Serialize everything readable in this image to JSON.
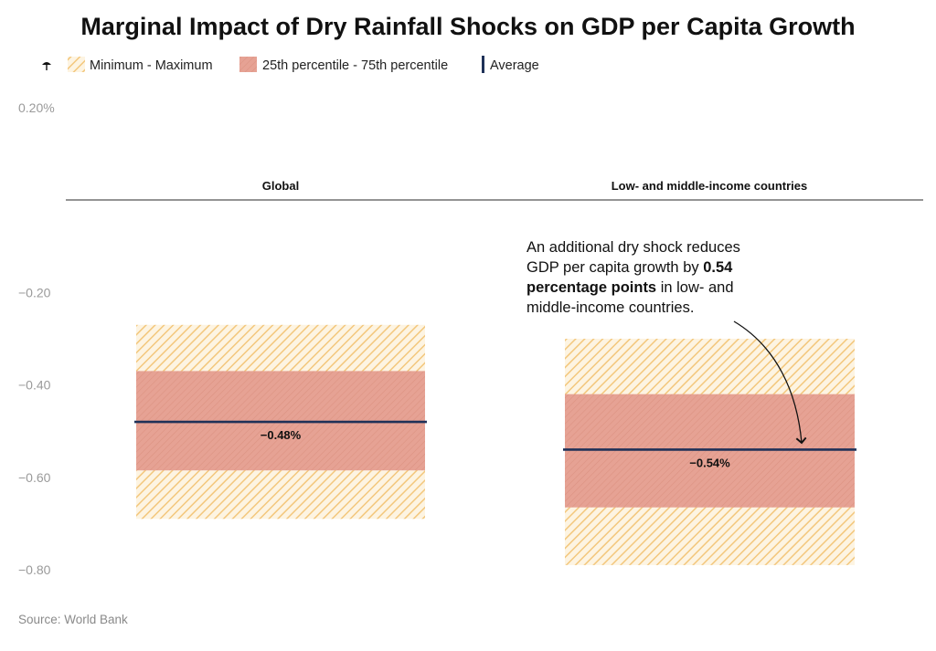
{
  "chart_data": {
    "type": "range-band",
    "title": "Marginal Impact of Dry Rainfall Shocks on GDP per Capita Growth",
    "legend": [
      {
        "key": "minmax",
        "label": "Minimum - Maximum",
        "color": "#f5c87a"
      },
      {
        "key": "iqr",
        "label": "25th percentile - 75th percentile",
        "color": "#e6a294"
      },
      {
        "key": "avg",
        "label": "Average",
        "color": "#1f3158"
      }
    ],
    "ylim": [
      -0.8,
      0.2
    ],
    "yticks": [
      {
        "value": 0.2,
        "label": "0.20%"
      },
      {
        "value": -0.2,
        "label": "−0.20"
      },
      {
        "value": -0.4,
        "label": "−0.40"
      },
      {
        "value": -0.6,
        "label": "−0.60"
      },
      {
        "value": -0.8,
        "label": "−0.80"
      }
    ],
    "panels": [
      {
        "name": "Global",
        "min": -0.69,
        "p25": -0.585,
        "p75": -0.37,
        "max": -0.27,
        "average": -0.48,
        "avg_label": "−0.48%"
      },
      {
        "name": "Low- and middle-income countries",
        "min": -0.79,
        "p25": -0.665,
        "p75": -0.42,
        "max": -0.3,
        "average": -0.54,
        "avg_label": "−0.54%"
      }
    ],
    "annotation": {
      "panel": 1,
      "lines": [
        [
          {
            "text": "An additional dry shock reduces",
            "bold": false
          }
        ],
        [
          {
            "text": "GDP per capita growth by ",
            "bold": false
          },
          {
            "text": "0.54",
            "bold": true
          }
        ],
        [
          {
            "text": "percentage points",
            "bold": true
          },
          {
            "text": " in low- and",
            "bold": false
          }
        ],
        [
          {
            "text": "middle-income countries.",
            "bold": false
          }
        ]
      ]
    },
    "source": "Source: World Bank",
    "colors": {
      "axis_line": "#555555",
      "hatch_bg": "#fdf4e2",
      "avg_line": "#1f3158"
    }
  }
}
